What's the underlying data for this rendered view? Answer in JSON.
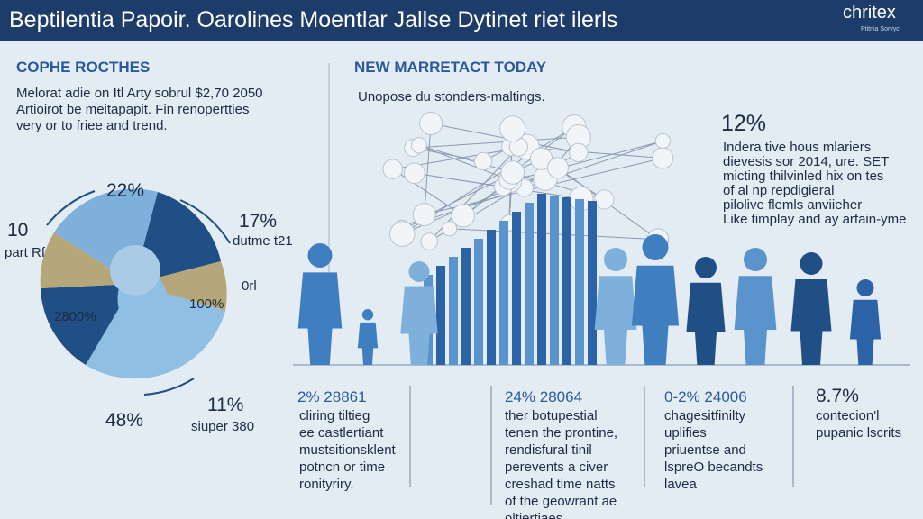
{
  "header": {
    "title": "Beptilentia Papoir. Oarolines Moentlar Jallse Dytinet riet ilerls",
    "logo": "chritex",
    "logo_sub": "Ptitnia Sorvyc"
  },
  "left": {
    "heading": "COPHE ROCTHES",
    "lines": [
      "Melorat adie on Itl Arty sobrul $2,70 2050",
      "Artioirot be meitapapit. Fin renopertties",
      "very or to friee and trend."
    ]
  },
  "pie_labels": [
    "22%",
    "10",
    "part Rf",
    "17%",
    "dutme t21",
    "0rl",
    "100%",
    "2800%",
    "48%",
    "11%",
    "siuper 380"
  ],
  "middle": {
    "heading": "NEW MARRETACT TODAY",
    "subtitle": "Unopose du stonders-maltings."
  },
  "right": {
    "stat": "12%",
    "lines": [
      "Indera tive hous mlariers",
      "dievesis sor 2014, ure. SET",
      "micting thilvinled hix on tes",
      "of al np repdigieral",
      "pilolive flemls anviieher",
      "Like timplay and ay arfain-yme"
    ]
  },
  "columns": [
    {
      "stat": "2% 28861",
      "lines": [
        "cliring tiltieg",
        "ee castlertiant",
        "mustsitionsklent",
        "potncn or time",
        "ronityriry."
      ]
    },
    {
      "stat": "24% 28064",
      "lines": [
        "ther botupestial",
        "tenen the prontine,",
        "rendisfural tinil",
        "perevents a civer",
        "creshad time natts",
        "of the geowrant ae",
        "oltiertiaes."
      ]
    },
    {
      "stat": "0-2% 24006",
      "lines": [
        "chagesitfinilty",
        "uplifies",
        "priuentse and",
        "lspreO becandts",
        "lavea"
      ]
    },
    {
      "stat": "8.7%",
      "lines": [
        "contecion'l",
        "pupanic lscrits"
      ]
    }
  ]
}
